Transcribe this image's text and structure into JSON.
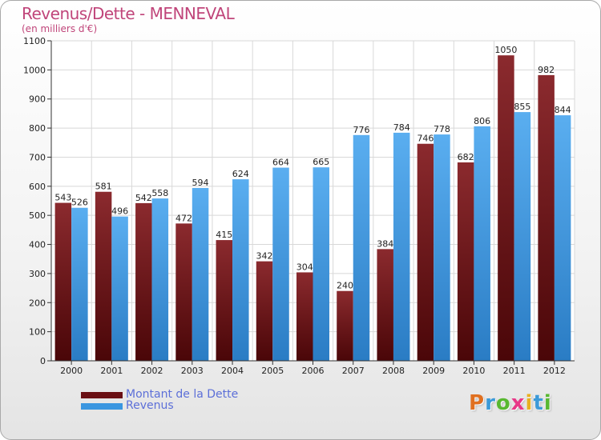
{
  "title": "Revenus/Dette - MENNEVAL",
  "subtitle": "(en milliers d'€)",
  "colors": {
    "dette": "#7a1a1f",
    "revenus": "#3a96e0",
    "title": "#c0457a"
  },
  "logo": {
    "text": "Proxiti",
    "letters": [
      "P",
      "r",
      "o",
      "x",
      "i",
      "t",
      "i"
    ],
    "colors": [
      "#e07020",
      "#3c9ad8",
      "#58b830",
      "#e83888",
      "#e8b020",
      "#3c9ad8",
      "#58b830"
    ]
  },
  "legend": [
    {
      "label": "Montant de la Dette",
      "color": "#7a1a1f"
    },
    {
      "label": "Revenus",
      "color": "#3a96e0"
    }
  ],
  "chart_data": {
    "type": "bar",
    "categories": [
      "2000",
      "2001",
      "2002",
      "2003",
      "2004",
      "2005",
      "2006",
      "2007",
      "2008",
      "2009",
      "2010",
      "2011",
      "2012"
    ],
    "series": [
      {
        "name": "Montant de la Dette",
        "values": [
          543,
          581,
          542,
          472,
          415,
          342,
          304,
          240,
          384,
          746,
          682,
          1050,
          982
        ]
      },
      {
        "name": "Revenus",
        "values": [
          526,
          496,
          558,
          594,
          624,
          664,
          665,
          776,
          784,
          778,
          806,
          855,
          844
        ]
      }
    ],
    "title": "Revenus/Dette - MENNEVAL",
    "ylim": [
      0,
      1100
    ],
    "yticks": [
      "0",
      "100",
      "200",
      "300",
      "400",
      "500",
      "600",
      "700",
      "800",
      "900",
      "1000",
      "1100"
    ],
    "grid": true,
    "legend_position": "bottom-left"
  }
}
